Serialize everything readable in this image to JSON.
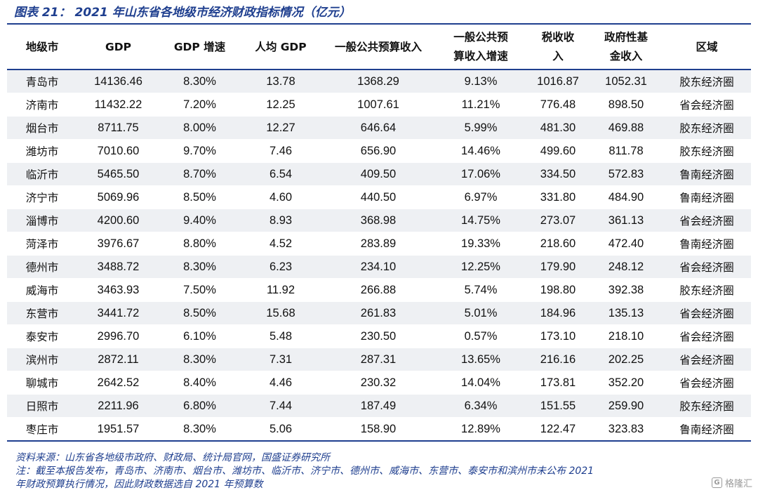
{
  "title": "图表 21： 2021 年山东省各地级市经济财政指标情况（亿元）",
  "headers": {
    "city": [
      "地级市"
    ],
    "gdp": [
      "GDP"
    ],
    "gdp_growth": [
      "GDP 增速"
    ],
    "per_capita_gdp": [
      "人均 GDP"
    ],
    "general_budget_revenue": [
      "一般公共预算收入"
    ],
    "general_budget_revenue_growth": [
      "一般公共预",
      "算收入增速"
    ],
    "tax_revenue": [
      "税收收",
      "入"
    ],
    "fund_revenue": [
      "政府性基",
      "金收入"
    ],
    "region": [
      "区域"
    ]
  },
  "rows": [
    {
      "city": "青岛市",
      "gdp": "14136.46",
      "gdp_growth": "8.30%",
      "per_capita_gdp": "13.78",
      "general_budget_revenue": "1368.29",
      "general_budget_revenue_growth": "9.13%",
      "tax_revenue": "1016.87",
      "fund_revenue": "1052.31",
      "region": "胶东经济圈"
    },
    {
      "city": "济南市",
      "gdp": "11432.22",
      "gdp_growth": "7.20%",
      "per_capita_gdp": "12.25",
      "general_budget_revenue": "1007.61",
      "general_budget_revenue_growth": "11.21%",
      "tax_revenue": "776.48",
      "fund_revenue": "898.50",
      "region": "省会经济圈"
    },
    {
      "city": "烟台市",
      "gdp": "8711.75",
      "gdp_growth": "8.00%",
      "per_capita_gdp": "12.27",
      "general_budget_revenue": "646.64",
      "general_budget_revenue_growth": "5.99%",
      "tax_revenue": "481.30",
      "fund_revenue": "469.88",
      "region": "胶东经济圈"
    },
    {
      "city": "潍坊市",
      "gdp": "7010.60",
      "gdp_growth": "9.70%",
      "per_capita_gdp": "7.46",
      "general_budget_revenue": "656.90",
      "general_budget_revenue_growth": "14.46%",
      "tax_revenue": "499.60",
      "fund_revenue": "811.78",
      "region": "胶东经济圈"
    },
    {
      "city": "临沂市",
      "gdp": "5465.50",
      "gdp_growth": "8.70%",
      "per_capita_gdp": "6.54",
      "general_budget_revenue": "409.50",
      "general_budget_revenue_growth": "17.06%",
      "tax_revenue": "334.50",
      "fund_revenue": "572.83",
      "region": "鲁南经济圈"
    },
    {
      "city": "济宁市",
      "gdp": "5069.96",
      "gdp_growth": "8.50%",
      "per_capita_gdp": "4.60",
      "general_budget_revenue": "440.50",
      "general_budget_revenue_growth": "6.97%",
      "tax_revenue": "331.80",
      "fund_revenue": "484.90",
      "region": "鲁南经济圈"
    },
    {
      "city": "淄博市",
      "gdp": "4200.60",
      "gdp_growth": "9.40%",
      "per_capita_gdp": "8.93",
      "general_budget_revenue": "368.98",
      "general_budget_revenue_growth": "14.75%",
      "tax_revenue": "273.07",
      "fund_revenue": "361.13",
      "region": "省会经济圈"
    },
    {
      "city": "菏泽市",
      "gdp": "3976.67",
      "gdp_growth": "8.80%",
      "per_capita_gdp": "4.52",
      "general_budget_revenue": "283.89",
      "general_budget_revenue_growth": "19.33%",
      "tax_revenue": "218.60",
      "fund_revenue": "472.40",
      "region": "鲁南经济圈"
    },
    {
      "city": "德州市",
      "gdp": "3488.72",
      "gdp_growth": "8.30%",
      "per_capita_gdp": "6.23",
      "general_budget_revenue": "234.10",
      "general_budget_revenue_growth": "12.25%",
      "tax_revenue": "179.90",
      "fund_revenue": "248.12",
      "region": "省会经济圈"
    },
    {
      "city": "威海市",
      "gdp": "3463.93",
      "gdp_growth": "7.50%",
      "per_capita_gdp": "11.92",
      "general_budget_revenue": "266.88",
      "general_budget_revenue_growth": "5.74%",
      "tax_revenue": "198.80",
      "fund_revenue": "392.38",
      "region": "胶东经济圈"
    },
    {
      "city": "东营市",
      "gdp": "3441.72",
      "gdp_growth": "8.50%",
      "per_capita_gdp": "15.68",
      "general_budget_revenue": "261.83",
      "general_budget_revenue_growth": "5.01%",
      "tax_revenue": "184.96",
      "fund_revenue": "135.13",
      "region": "省会经济圈"
    },
    {
      "city": "泰安市",
      "gdp": "2996.70",
      "gdp_growth": "6.10%",
      "per_capita_gdp": "5.48",
      "general_budget_revenue": "230.50",
      "general_budget_revenue_growth": "0.57%",
      "tax_revenue": "173.10",
      "fund_revenue": "218.10",
      "region": "省会经济圈"
    },
    {
      "city": "滨州市",
      "gdp": "2872.11",
      "gdp_growth": "8.30%",
      "per_capita_gdp": "7.31",
      "general_budget_revenue": "287.31",
      "general_budget_revenue_growth": "13.65%",
      "tax_revenue": "216.16",
      "fund_revenue": "202.25",
      "region": "省会经济圈"
    },
    {
      "city": "聊城市",
      "gdp": "2642.52",
      "gdp_growth": "8.40%",
      "per_capita_gdp": "4.46",
      "general_budget_revenue": "230.32",
      "general_budget_revenue_growth": "14.04%",
      "tax_revenue": "173.81",
      "fund_revenue": "352.20",
      "region": "省会经济圈"
    },
    {
      "city": "日照市",
      "gdp": "2211.96",
      "gdp_growth": "6.80%",
      "per_capita_gdp": "7.44",
      "general_budget_revenue": "187.49",
      "general_budget_revenue_growth": "6.34%",
      "tax_revenue": "151.55",
      "fund_revenue": "259.90",
      "region": "胶东经济圈"
    },
    {
      "city": "枣庄市",
      "gdp": "1951.57",
      "gdp_growth": "8.30%",
      "per_capita_gdp": "5.06",
      "general_budget_revenue": "158.90",
      "general_budget_revenue_growth": "12.89%",
      "tax_revenue": "122.47",
      "fund_revenue": "323.83",
      "region": "鲁南经济圈"
    }
  ],
  "notes": [
    "资料来源：山东省各地级市政府、财政局、统计局官网，国盛证券研究所",
    "注：截至本报告发布，青岛市、济南市、烟台市、潍坊市、临沂市、济宁市、德州市、威海市、东营市、泰安市和滨州市未公布 2021",
    "年财政预算执行情况，因此财政数据选自 2021 年预算数"
  ],
  "watermark": {
    "icon": "G",
    "text": "格隆汇"
  },
  "colors": {
    "accent": "#1f3f8f",
    "stripe": "#eef0f3"
  }
}
